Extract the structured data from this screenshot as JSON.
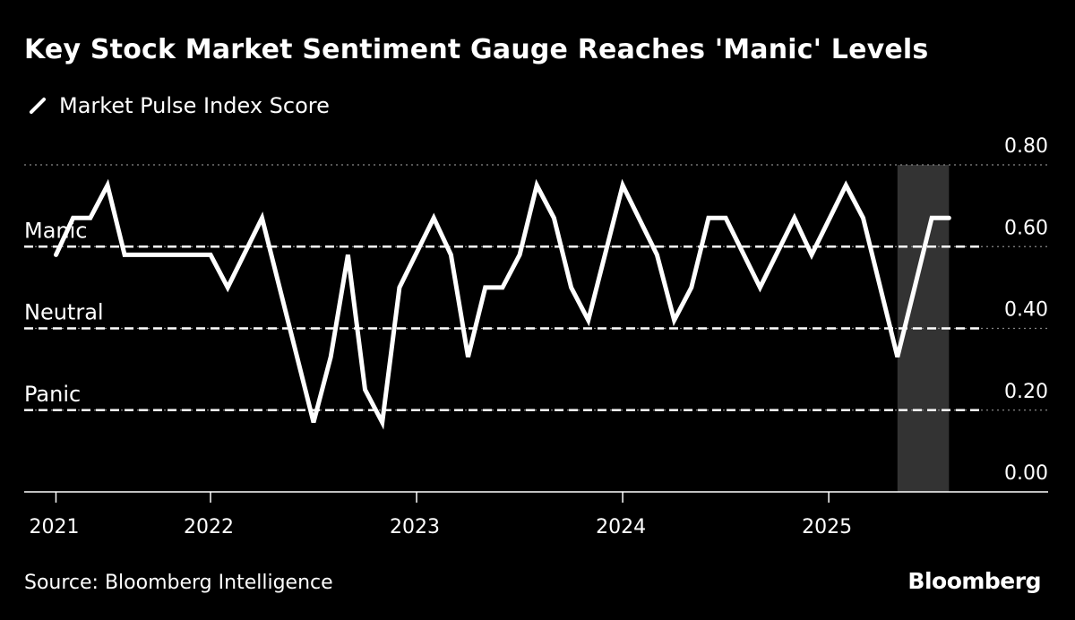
{
  "title": "Key Stock Market Sentiment Gauge Reaches 'Manic' Levels",
  "source": "Source: Bloomberg Intelligence",
  "brand": "Bloomberg",
  "colors": {
    "background": "#000000",
    "line": "#ffffff",
    "highlight": "#333333",
    "grid": "#888888"
  },
  "chart_data": {
    "type": "line",
    "title": "Key Stock Market Sentiment Gauge Reaches 'Manic' Levels",
    "legend": [
      {
        "name": "Market Pulse Index Score",
        "icon": "line-swatch-icon"
      }
    ],
    "legend_placement": "top-left",
    "ylim": [
      0,
      0.8
    ],
    "yticks": [
      "0.00",
      "0.20",
      "0.40",
      "0.60",
      "0.80"
    ],
    "ytick_values": [
      0,
      0.2,
      0.4,
      0.6,
      0.8
    ],
    "xticks": [
      {
        "label": "2021",
        "date": "2021-04"
      },
      {
        "label": "2022",
        "date": "2022-01"
      },
      {
        "label": "2023",
        "date": "2023-01"
      },
      {
        "label": "2024",
        "date": "2024-01"
      },
      {
        "label": "2025",
        "date": "2025-01"
      }
    ],
    "xlim": [
      "2021-03",
      "2025-12"
    ],
    "zones": [
      {
        "label": "Manic",
        "value": 0.6
      },
      {
        "label": "Neutral",
        "value": 0.4
      },
      {
        "label": "Panic",
        "value": 0.2
      }
    ],
    "highlight_range": [
      "2025-05",
      "2025-08"
    ],
    "series": [
      {
        "name": "Market Pulse Index Score",
        "points": [
          [
            "2021-04",
            0.58
          ],
          [
            "2021-05",
            0.67
          ],
          [
            "2021-06",
            0.67
          ],
          [
            "2021-07",
            0.75
          ],
          [
            "2021-08",
            0.58
          ],
          [
            "2022-01",
            0.58
          ],
          [
            "2022-02",
            0.5
          ],
          [
            "2022-04",
            0.67
          ],
          [
            "2022-07",
            0.17
          ],
          [
            "2022-08",
            0.33
          ],
          [
            "2022-09",
            0.58
          ],
          [
            "2022-10",
            0.25
          ],
          [
            "2022-11",
            0.17
          ],
          [
            "2022-12",
            0.5
          ],
          [
            "2023-02",
            0.67
          ],
          [
            "2023-03",
            0.58
          ],
          [
            "2023-04",
            0.33
          ],
          [
            "2023-05",
            0.5
          ],
          [
            "2023-06",
            0.5
          ],
          [
            "2023-07",
            0.58
          ],
          [
            "2023-08",
            0.75
          ],
          [
            "2023-09",
            0.67
          ],
          [
            "2023-10",
            0.5
          ],
          [
            "2023-11",
            0.42
          ],
          [
            "2024-01",
            0.75
          ],
          [
            "2024-03",
            0.58
          ],
          [
            "2024-04",
            0.42
          ],
          [
            "2024-05",
            0.5
          ],
          [
            "2024-06",
            0.67
          ],
          [
            "2024-07",
            0.67
          ],
          [
            "2024-09",
            0.5
          ],
          [
            "2024-11",
            0.67
          ],
          [
            "2024-12",
            0.58
          ],
          [
            "2025-02",
            0.75
          ],
          [
            "2025-03",
            0.67
          ],
          [
            "2025-05",
            0.33
          ],
          [
            "2025-06",
            0.5
          ],
          [
            "2025-07",
            0.67
          ],
          [
            "2025-08",
            0.67
          ]
        ]
      }
    ]
  }
}
